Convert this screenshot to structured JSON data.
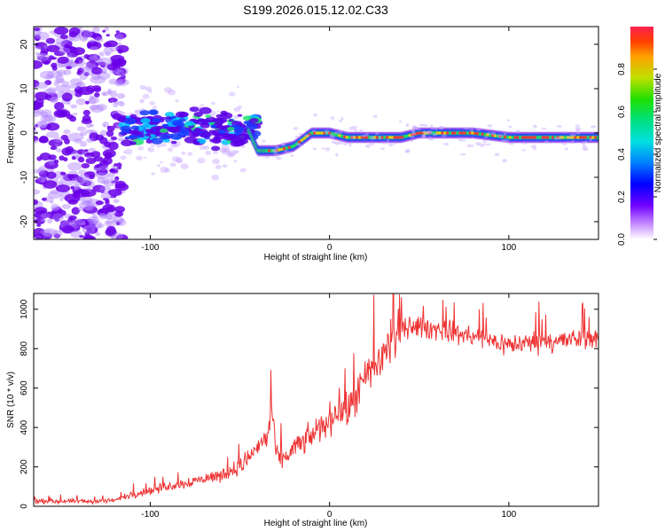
{
  "title": "S199.2026.015.12.02.C33",
  "chart_data": [
    {
      "type": "heatmap",
      "name": "spectrogram",
      "xlabel": "Height of straight line (km)",
      "ylabel": "Frequency (Hz)",
      "xlim": [
        -165,
        150
      ],
      "ylim": [
        -24,
        24
      ],
      "xticks": [
        -100,
        0,
        100
      ],
      "yticks": [
        -20,
        -10,
        0,
        10,
        20
      ],
      "dominant_frequency": {
        "x": [
          -60,
          -45,
          -40,
          -30,
          -20,
          -10,
          0,
          10,
          20,
          40,
          50,
          60,
          80,
          100,
          120,
          150
        ],
        "y": [
          1.5,
          0.5,
          -4,
          -4,
          -3,
          0,
          0,
          -1,
          -1,
          -1,
          0,
          0,
          0,
          -1,
          -1,
          -1
        ]
      },
      "colorbar": {
        "label": "Normalized spectral amplitude",
        "ticks": [
          "0.0",
          "0.2",
          "0.4",
          "0.6",
          "0.8"
        ],
        "range": [
          0,
          1
        ]
      }
    },
    {
      "type": "line",
      "name": "snr",
      "xlabel": "Height of straight line (km)",
      "ylabel": "SNR (10 * v/v)",
      "xlim": [
        -165,
        150
      ],
      "ylim": [
        0,
        1080
      ],
      "xticks": [
        -100,
        0,
        100
      ],
      "yticks": [
        0,
        200,
        400,
        600,
        800,
        1000
      ],
      "color": "#ee3333",
      "series": [
        {
          "name": "SNR",
          "x": [
            -165,
            -150,
            -140,
            -130,
            -120,
            -110,
            -100,
            -90,
            -80,
            -70,
            -60,
            -50,
            -45,
            -40,
            -35,
            -32,
            -30,
            -25,
            -20,
            -15,
            -10,
            -5,
            0,
            5,
            10,
            15,
            20,
            25,
            30,
            35,
            40,
            45,
            50,
            55,
            60,
            70,
            80,
            90,
            100,
            110,
            120,
            130,
            140,
            150
          ],
          "values": [
            25,
            25,
            25,
            25,
            30,
            60,
            80,
            100,
            120,
            140,
            160,
            200,
            250,
            300,
            350,
            480,
            260,
            240,
            300,
            320,
            360,
            400,
            440,
            500,
            470,
            560,
            640,
            700,
            780,
            850,
            900,
            920,
            910,
            900,
            900,
            880,
            860,
            840,
            820,
            830,
            840,
            840,
            850,
            850
          ]
        }
      ]
    }
  ]
}
